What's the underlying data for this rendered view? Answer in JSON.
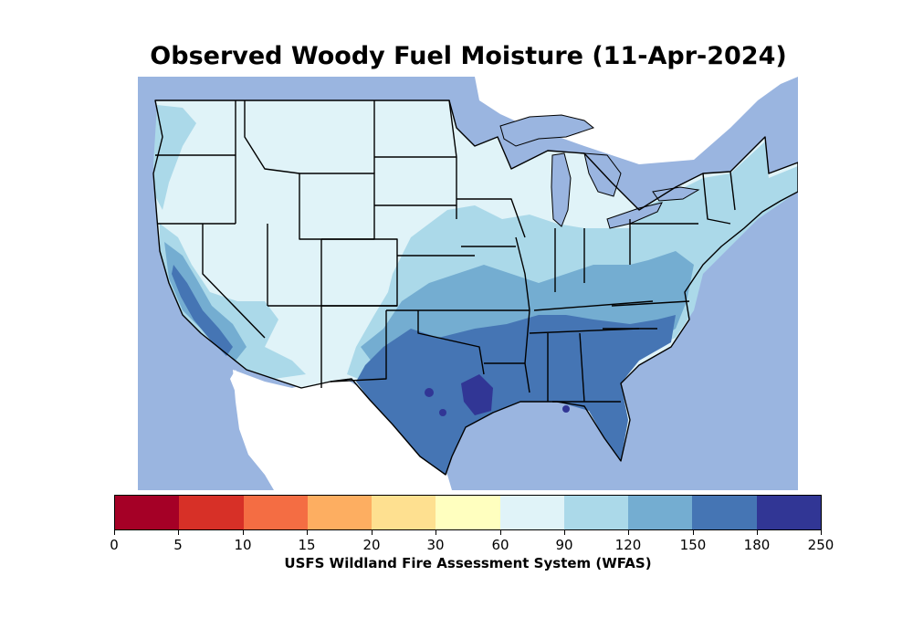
{
  "title": "Observed Woody Fuel Moisture (11-Apr-2024)",
  "colors": {
    "ocean": "#9ab5e0",
    "land_outside": "#ffffff",
    "state_border": "#000000",
    "lake": "#9ab5e0"
  },
  "colorbar": {
    "caption": "USFS Wildland Fire Assessment System (WFAS)",
    "ticks": [
      "0",
      "5",
      "10",
      "15",
      "20",
      "30",
      "60",
      "90",
      "120",
      "150",
      "180",
      "250"
    ],
    "bins": [
      {
        "range": "0-5",
        "color": "#a50026"
      },
      {
        "range": "5-10",
        "color": "#d73027"
      },
      {
        "range": "10-15",
        "color": "#f46d43"
      },
      {
        "range": "15-20",
        "color": "#fdae61"
      },
      {
        "range": "20-30",
        "color": "#fee090"
      },
      {
        "range": "30-60",
        "color": "#ffffbf"
      },
      {
        "range": "60-90",
        "color": "#e0f3f8"
      },
      {
        "range": "90-120",
        "color": "#abd9e9"
      },
      {
        "range": "120-150",
        "color": "#74add1"
      },
      {
        "range": "150-180",
        "color": "#4575b4"
      },
      {
        "range": "180-250",
        "color": "#313695"
      }
    ]
  },
  "regions": [
    {
      "name": "west-and-north",
      "moisture_range": "60-90"
    },
    {
      "name": "central-plains-and-midwest",
      "moisture_range": "90-120"
    },
    {
      "name": "mid-south-and-ohio-valley",
      "moisture_range": "120-150"
    },
    {
      "name": "texas-and-southeast",
      "moisture_range": "150-180"
    },
    {
      "name": "east-texas-louisiana-core",
      "moisture_range": "180-250"
    },
    {
      "name": "california-coast",
      "moisture_range": "150-180"
    }
  ]
}
